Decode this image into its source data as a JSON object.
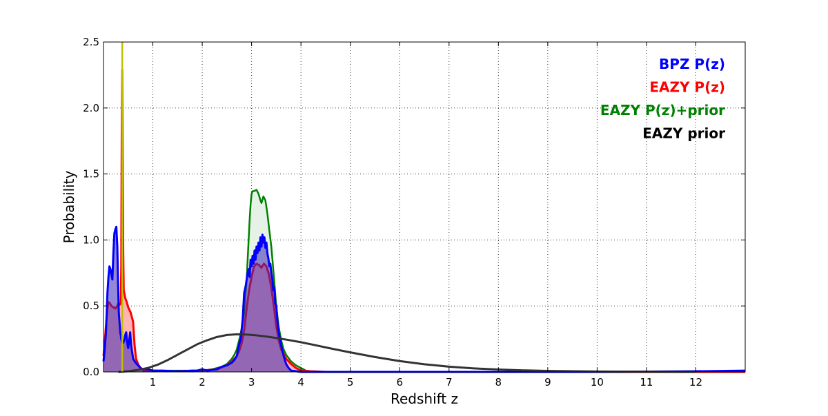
{
  "chart_data": {
    "type": "area",
    "title": "",
    "xlabel": "Redshift z",
    "ylabel": "Probability",
    "xlim": [
      0,
      13
    ],
    "ylim": [
      0,
      2.5
    ],
    "xticks": [
      1,
      2,
      3,
      4,
      5,
      6,
      7,
      8,
      9,
      10,
      11,
      12
    ],
    "yticks": [
      0.0,
      0.5,
      1.0,
      1.5,
      2.0,
      2.5
    ],
    "ytick_labels": [
      "0.0",
      "0.5",
      "1.0",
      "1.5",
      "2.0",
      "2.5"
    ],
    "grid": true,
    "legend_position": "top-right",
    "legend": [
      {
        "label": "BPZ P(z)",
        "color": "#0000ff"
      },
      {
        "label": "EAZY P(z)",
        "color": "#ff0000"
      },
      {
        "label": "EAZY P(z)+prior",
        "color": "#008000"
      },
      {
        "label": "EAZY prior",
        "color": "#000000"
      }
    ],
    "vline": {
      "x": 0.38,
      "color": "#bfbf00"
    },
    "series": [
      {
        "color": "#008000",
        "fill": "#e6f2e6",
        "stroke_width": 2.5,
        "filled": true,
        "x": [
          0.36,
          0.38,
          0.4,
          0.45,
          0.5,
          0.55,
          0.6,
          0.7,
          0.8,
          1.0,
          1.2,
          1.4,
          1.6,
          1.8,
          2.0,
          2.2,
          2.4,
          2.5,
          2.6,
          2.65,
          2.7,
          2.72,
          2.76,
          2.8,
          2.85,
          2.9,
          2.92,
          2.94,
          2.96,
          2.98,
          3.0,
          3.02,
          3.05,
          3.1,
          3.14,
          3.18,
          3.2,
          3.24,
          3.28,
          3.32,
          3.36,
          3.4,
          3.45,
          3.5,
          3.55,
          3.6,
          3.65,
          3.7,
          3.8,
          3.9,
          4.0,
          4.1,
          4.2,
          4.3,
          4.5,
          5.0,
          6.0,
          13.0
        ],
        "y": [
          0.0,
          0.005,
          0.015,
          0.02,
          0.03,
          0.035,
          0.04,
          0.03,
          0.02,
          0.01,
          0.01,
          0.01,
          0.01,
          0.01,
          0.01,
          0.02,
          0.04,
          0.06,
          0.1,
          0.13,
          0.17,
          0.2,
          0.26,
          0.33,
          0.45,
          0.7,
          0.85,
          1.0,
          1.15,
          1.27,
          1.35,
          1.37,
          1.37,
          1.38,
          1.35,
          1.3,
          1.28,
          1.33,
          1.3,
          1.2,
          1.07,
          0.95,
          0.73,
          0.5,
          0.34,
          0.24,
          0.17,
          0.13,
          0.08,
          0.05,
          0.03,
          0.01,
          0.005,
          0.0,
          0.0,
          0.0,
          0.0,
          0.0
        ]
      },
      {
        "color": "#ff0000",
        "fill": "#ffb3b3",
        "stroke_width": 3,
        "filled": true,
        "x": [
          0.0,
          0.02,
          0.05,
          0.08,
          0.1,
          0.13,
          0.16,
          0.2,
          0.24,
          0.28,
          0.3,
          0.33,
          0.35,
          0.36,
          0.37,
          0.38,
          0.39,
          0.4,
          0.41,
          0.42,
          0.44,
          0.47,
          0.5,
          0.55,
          0.6,
          0.63,
          0.66,
          0.7,
          0.75,
          0.8,
          1.0,
          1.5,
          2.0,
          2.3,
          2.5,
          2.6,
          2.7,
          2.75,
          2.8,
          2.85,
          2.9,
          2.95,
          3.0,
          3.05,
          3.1,
          3.15,
          3.2,
          3.25,
          3.3,
          3.35,
          3.4,
          3.45,
          3.5,
          3.55,
          3.6,
          3.7,
          3.8,
          3.9,
          4.0,
          4.2,
          4.5,
          5.0,
          13.0
        ],
        "y": [
          0.12,
          0.2,
          0.35,
          0.48,
          0.53,
          0.52,
          0.5,
          0.49,
          0.48,
          0.5,
          0.52,
          0.51,
          0.52,
          0.8,
          1.8,
          2.29,
          1.5,
          0.9,
          0.62,
          0.6,
          0.56,
          0.53,
          0.49,
          0.45,
          0.38,
          0.2,
          0.1,
          0.06,
          0.03,
          0.01,
          0.005,
          0.005,
          0.01,
          0.02,
          0.05,
          0.08,
          0.12,
          0.16,
          0.22,
          0.32,
          0.48,
          0.62,
          0.72,
          0.8,
          0.82,
          0.81,
          0.79,
          0.82,
          0.8,
          0.74,
          0.64,
          0.5,
          0.35,
          0.24,
          0.17,
          0.1,
          0.06,
          0.03,
          0.01,
          0.005,
          0.0,
          0.0,
          0.0
        ]
      },
      {
        "color": "#0000ff",
        "fill": "rgba(60,40,180,0.55)",
        "stroke_width": 3,
        "filled": true,
        "x": [
          0.0,
          0.02,
          0.05,
          0.08,
          0.1,
          0.12,
          0.14,
          0.16,
          0.18,
          0.2,
          0.22,
          0.24,
          0.26,
          0.28,
          0.3,
          0.31,
          0.32,
          0.33,
          0.34,
          0.35,
          0.36,
          0.38,
          0.4,
          0.42,
          0.44,
          0.46,
          0.48,
          0.5,
          0.52,
          0.54,
          0.56,
          0.58,
          0.6,
          0.65,
          0.7,
          0.75,
          0.8,
          0.9,
          1.0,
          1.1,
          1.2,
          1.4,
          1.6,
          1.8,
          1.9,
          2.0,
          2.1,
          2.3,
          2.4,
          2.5,
          2.6,
          2.65,
          2.7,
          2.74,
          2.78,
          2.82,
          2.85,
          2.88,
          2.9,
          2.92,
          2.94,
          2.96,
          2.98,
          3.0,
          3.02,
          3.04,
          3.06,
          3.08,
          3.1,
          3.12,
          3.14,
          3.16,
          3.18,
          3.2,
          3.22,
          3.24,
          3.26,
          3.28,
          3.3,
          3.32,
          3.34,
          3.36,
          3.38,
          3.4,
          3.42,
          3.44,
          3.46,
          3.48,
          3.5,
          3.52,
          3.55,
          3.6,
          3.65,
          3.7,
          3.75,
          3.8,
          3.9,
          4.0,
          4.2,
          4.5,
          5.0,
          6.0,
          8.0,
          10.0,
          12.0,
          13.0
        ],
        "y": [
          0.08,
          0.15,
          0.3,
          0.6,
          0.72,
          0.8,
          0.78,
          0.74,
          0.7,
          0.9,
          1.05,
          1.08,
          1.1,
          0.95,
          0.6,
          0.45,
          0.4,
          0.35,
          0.3,
          0.28,
          0.25,
          0.22,
          0.22,
          0.24,
          0.28,
          0.3,
          0.22,
          0.18,
          0.24,
          0.3,
          0.2,
          0.15,
          0.1,
          0.07,
          0.05,
          0.03,
          0.02,
          0.02,
          0.01,
          0.01,
          0.01,
          0.005,
          0.005,
          0.01,
          0.01,
          0.02,
          0.01,
          0.02,
          0.04,
          0.05,
          0.07,
          0.09,
          0.12,
          0.2,
          0.25,
          0.4,
          0.6,
          0.65,
          0.7,
          0.75,
          0.78,
          0.72,
          0.85,
          0.8,
          0.88,
          0.82,
          0.92,
          0.85,
          0.95,
          0.9,
          0.98,
          0.92,
          1.02,
          0.95,
          1.04,
          0.98,
          1.02,
          0.94,
          0.98,
          0.9,
          0.86,
          0.8,
          0.82,
          0.75,
          0.7,
          0.62,
          0.64,
          0.52,
          0.5,
          0.4,
          0.3,
          0.2,
          0.12,
          0.06,
          0.03,
          0.01,
          0.005,
          0.0,
          0.0,
          0.0,
          0.0,
          0.0,
          0.0,
          0.0,
          0.005,
          0.01
        ]
      },
      {
        "color": "#333333",
        "fill": "none",
        "stroke_width": 3,
        "filled": false,
        "x": [
          0.3,
          0.5,
          0.7,
          0.9,
          1.1,
          1.3,
          1.5,
          1.7,
          1.9,
          2.1,
          2.3,
          2.5,
          2.7,
          2.9,
          3.1,
          3.3,
          3.5,
          3.7,
          4.0,
          4.3,
          4.6,
          5.0,
          5.5,
          6.0,
          6.5,
          7.0,
          7.5,
          8.0,
          8.5,
          9.0,
          10.0,
          11.0,
          12.0
        ],
        "y": [
          0.0,
          0.005,
          0.015,
          0.03,
          0.055,
          0.09,
          0.13,
          0.17,
          0.21,
          0.24,
          0.265,
          0.28,
          0.285,
          0.283,
          0.277,
          0.268,
          0.257,
          0.245,
          0.225,
          0.202,
          0.178,
          0.148,
          0.113,
          0.082,
          0.058,
          0.04,
          0.027,
          0.018,
          0.012,
          0.008,
          0.003,
          0.001,
          0.0
        ]
      }
    ]
  }
}
